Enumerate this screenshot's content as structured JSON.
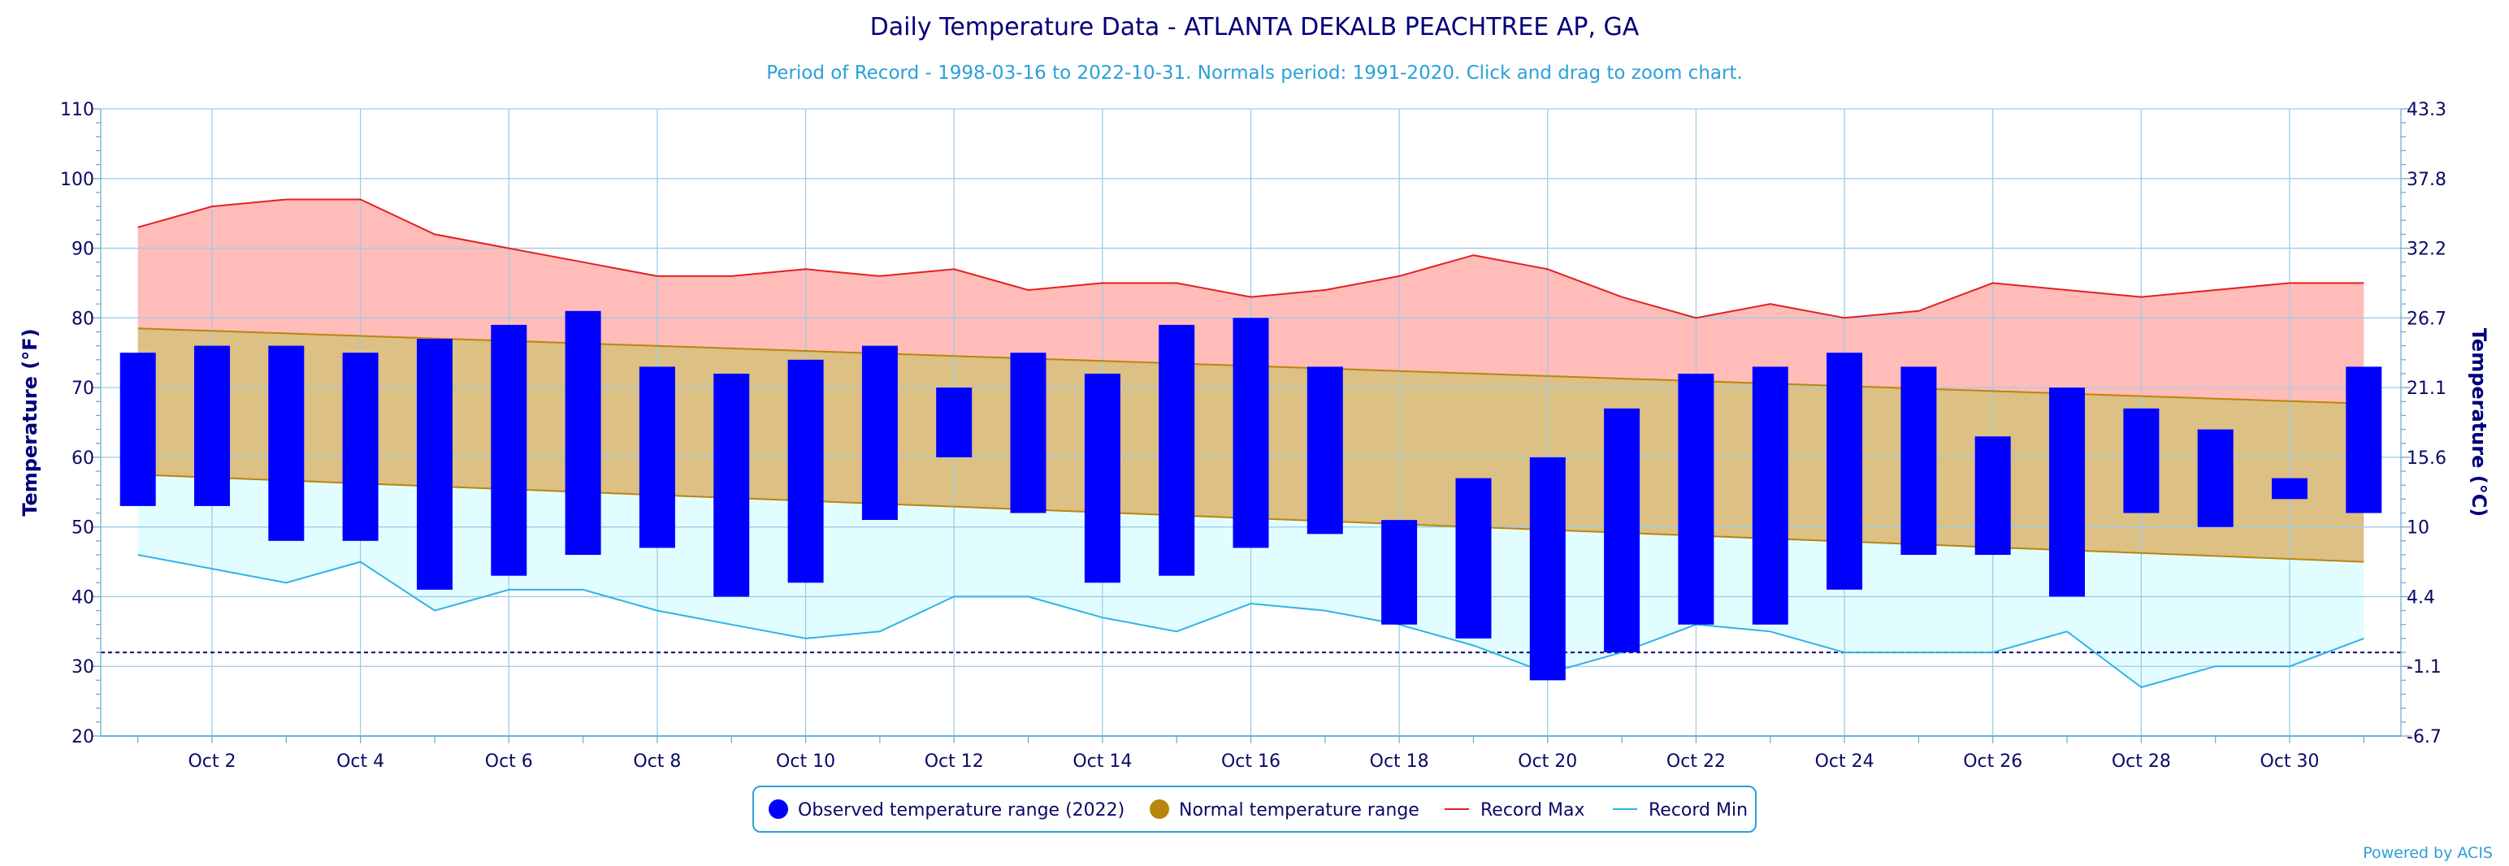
{
  "chart_data": {
    "type": "bar",
    "title": "Daily Temperature Data - ATLANTA DEKALB PEACHTREE AP, GA",
    "subtitle": "Period of Record - 1998-03-16 to 2022-10-31. Normals period: 1991-2020. Click and drag to zoom chart.",
    "ylabel": "Temperature (°F)",
    "ylabel_right": "Temperature (°C)",
    "ylim": [
      20,
      110
    ],
    "yticks": [
      20,
      30,
      40,
      50,
      60,
      70,
      80,
      90,
      100,
      110
    ],
    "yticks_right": [
      "-6.7",
      "-1.1",
      "4.4",
      "10",
      "15.6",
      "21.1",
      "26.7",
      "32.2",
      "37.8",
      "43.3"
    ],
    "freezing_line": 32,
    "x": [
      1,
      2,
      3,
      4,
      5,
      6,
      7,
      8,
      9,
      10,
      11,
      12,
      13,
      14,
      15,
      16,
      17,
      18,
      19,
      20,
      21,
      22,
      23,
      24,
      25,
      26,
      27,
      28,
      29,
      30,
      31
    ],
    "xticks": [
      {
        "day": 2,
        "label": "Oct 2"
      },
      {
        "day": 4,
        "label": "Oct 4"
      },
      {
        "day": 6,
        "label": "Oct 6"
      },
      {
        "day": 8,
        "label": "Oct 8"
      },
      {
        "day": 10,
        "label": "Oct 10"
      },
      {
        "day": 12,
        "label": "Oct 12"
      },
      {
        "day": 14,
        "label": "Oct 14"
      },
      {
        "day": 16,
        "label": "Oct 16"
      },
      {
        "day": 18,
        "label": "Oct 18"
      },
      {
        "day": 20,
        "label": "Oct 20"
      },
      {
        "day": 22,
        "label": "Oct 22"
      },
      {
        "day": 24,
        "label": "Oct 24"
      },
      {
        "day": 26,
        "label": "Oct 26"
      },
      {
        "day": 28,
        "label": "Oct 28"
      },
      {
        "day": 30,
        "label": "Oct 30"
      }
    ],
    "series": [
      {
        "name": "Observed temperature range (2022)",
        "color": "#0000ff",
        "high": [
          75,
          76,
          76,
          75,
          77,
          79,
          81,
          73,
          72,
          74,
          76,
          70,
          75,
          72,
          79,
          80,
          73,
          51,
          57,
          60,
          67,
          72,
          73,
          75,
          73,
          63,
          70,
          67,
          64,
          57,
          73
        ],
        "low": [
          53,
          53,
          48,
          48,
          41,
          43,
          46,
          47,
          40,
          42,
          51,
          60,
          52,
          42,
          43,
          47,
          49,
          36,
          34,
          28,
          32,
          36,
          36,
          41,
          46,
          46,
          40,
          52,
          50,
          54,
          52
        ]
      },
      {
        "name": "Normal temperature range",
        "color": "#b8860b",
        "fill": "#dcc084",
        "high_start": 78.5,
        "high_end": 67.7,
        "low_start": 57.5,
        "low_end": 45
      },
      {
        "name": "Record Max",
        "color": "#e32020",
        "fill": "#ffbcb8",
        "values": [
          93,
          96,
          97,
          97,
          92,
          90,
          88,
          86,
          86,
          87,
          86,
          87,
          84,
          85,
          85,
          83,
          84,
          86,
          89,
          87,
          83,
          80,
          82,
          80,
          81,
          85,
          84,
          83,
          84,
          85,
          85
        ]
      },
      {
        "name": "Record Min",
        "color": "#2fb3e6",
        "fill": "#e2fdff",
        "values": [
          46,
          44,
          42,
          45,
          38,
          41,
          41,
          38,
          36,
          34,
          35,
          40,
          40,
          37,
          35,
          39,
          38,
          36,
          33,
          29,
          32,
          36,
          35,
          32,
          32,
          32,
          35,
          27,
          30,
          30,
          34
        ]
      }
    ],
    "legend": {
      "placement": "bottom-center"
    },
    "credit": "Powered by ACIS"
  }
}
